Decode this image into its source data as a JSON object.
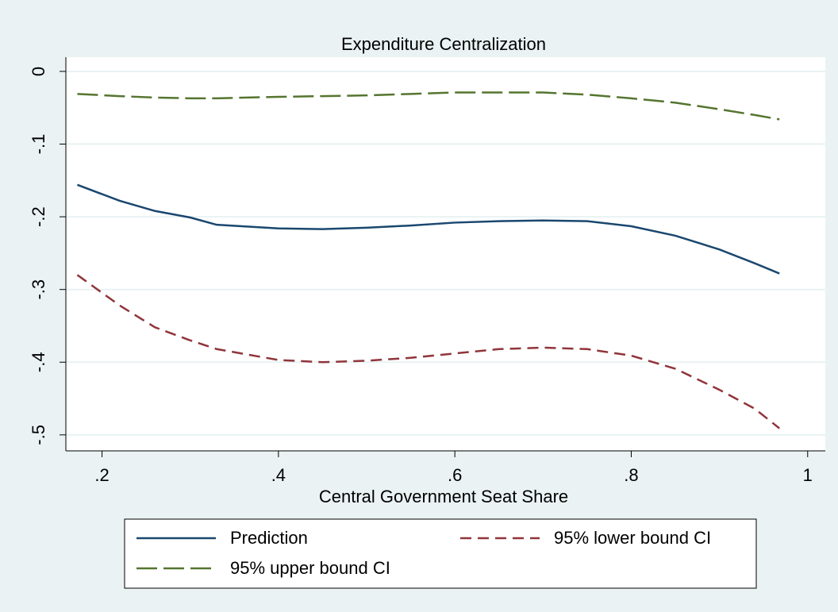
{
  "chart_data": {
    "type": "line",
    "title": "Expenditure Centralization",
    "x_label": "Central Government Seat Share",
    "x": [
      0.172,
      0.22,
      0.26,
      0.3,
      0.33,
      0.4,
      0.45,
      0.5,
      0.55,
      0.6,
      0.65,
      0.7,
      0.75,
      0.8,
      0.85,
      0.9,
      0.94,
      0.968
    ],
    "series": [
      {
        "name": "Prediction",
        "color": "#1a476f",
        "dash": "solid",
        "values": [
          -0.156,
          -0.178,
          -0.192,
          -0.201,
          -0.211,
          -0.216,
          -0.217,
          -0.215,
          -0.212,
          -0.208,
          -0.206,
          -0.205,
          -0.206,
          -0.213,
          -0.226,
          -0.245,
          -0.264,
          -0.278
        ]
      },
      {
        "name": "95% lower bound CI",
        "color": "#90353b",
        "dash": "short",
        "values": [
          -0.28,
          -0.322,
          -0.352,
          -0.37,
          -0.382,
          -0.397,
          -0.4,
          -0.398,
          -0.394,
          -0.388,
          -0.382,
          -0.38,
          -0.382,
          -0.391,
          -0.409,
          -0.438,
          -0.464,
          -0.491
        ]
      },
      {
        "name": "95% upper bound CI",
        "color": "#55752f",
        "dash": "long",
        "values": [
          -0.031,
          -0.034,
          -0.036,
          -0.037,
          -0.037,
          -0.035,
          -0.034,
          -0.033,
          -0.031,
          -0.029,
          -0.029,
          -0.029,
          -0.032,
          -0.037,
          -0.043,
          -0.052,
          -0.06,
          -0.066
        ]
      }
    ],
    "xlim": [
      0.159,
      1.02
    ],
    "ylim": [
      -0.522,
      0.0196
    ],
    "xticks": [
      {
        "value": 0.2,
        "label": ".2"
      },
      {
        "value": 0.4,
        "label": ".4"
      },
      {
        "value": 0.6,
        "label": ".6"
      },
      {
        "value": 0.8,
        "label": ".8"
      },
      1
    ],
    "yticks": [
      0,
      {
        "value": -0.1,
        "label": "-.1"
      },
      {
        "value": -0.2,
        "label": "-.2"
      },
      {
        "value": -0.3,
        "label": "-.3"
      },
      {
        "value": -0.4,
        "label": "-.4"
      },
      {
        "value": -0.5,
        "label": "-.5"
      }
    ],
    "grid": true
  }
}
